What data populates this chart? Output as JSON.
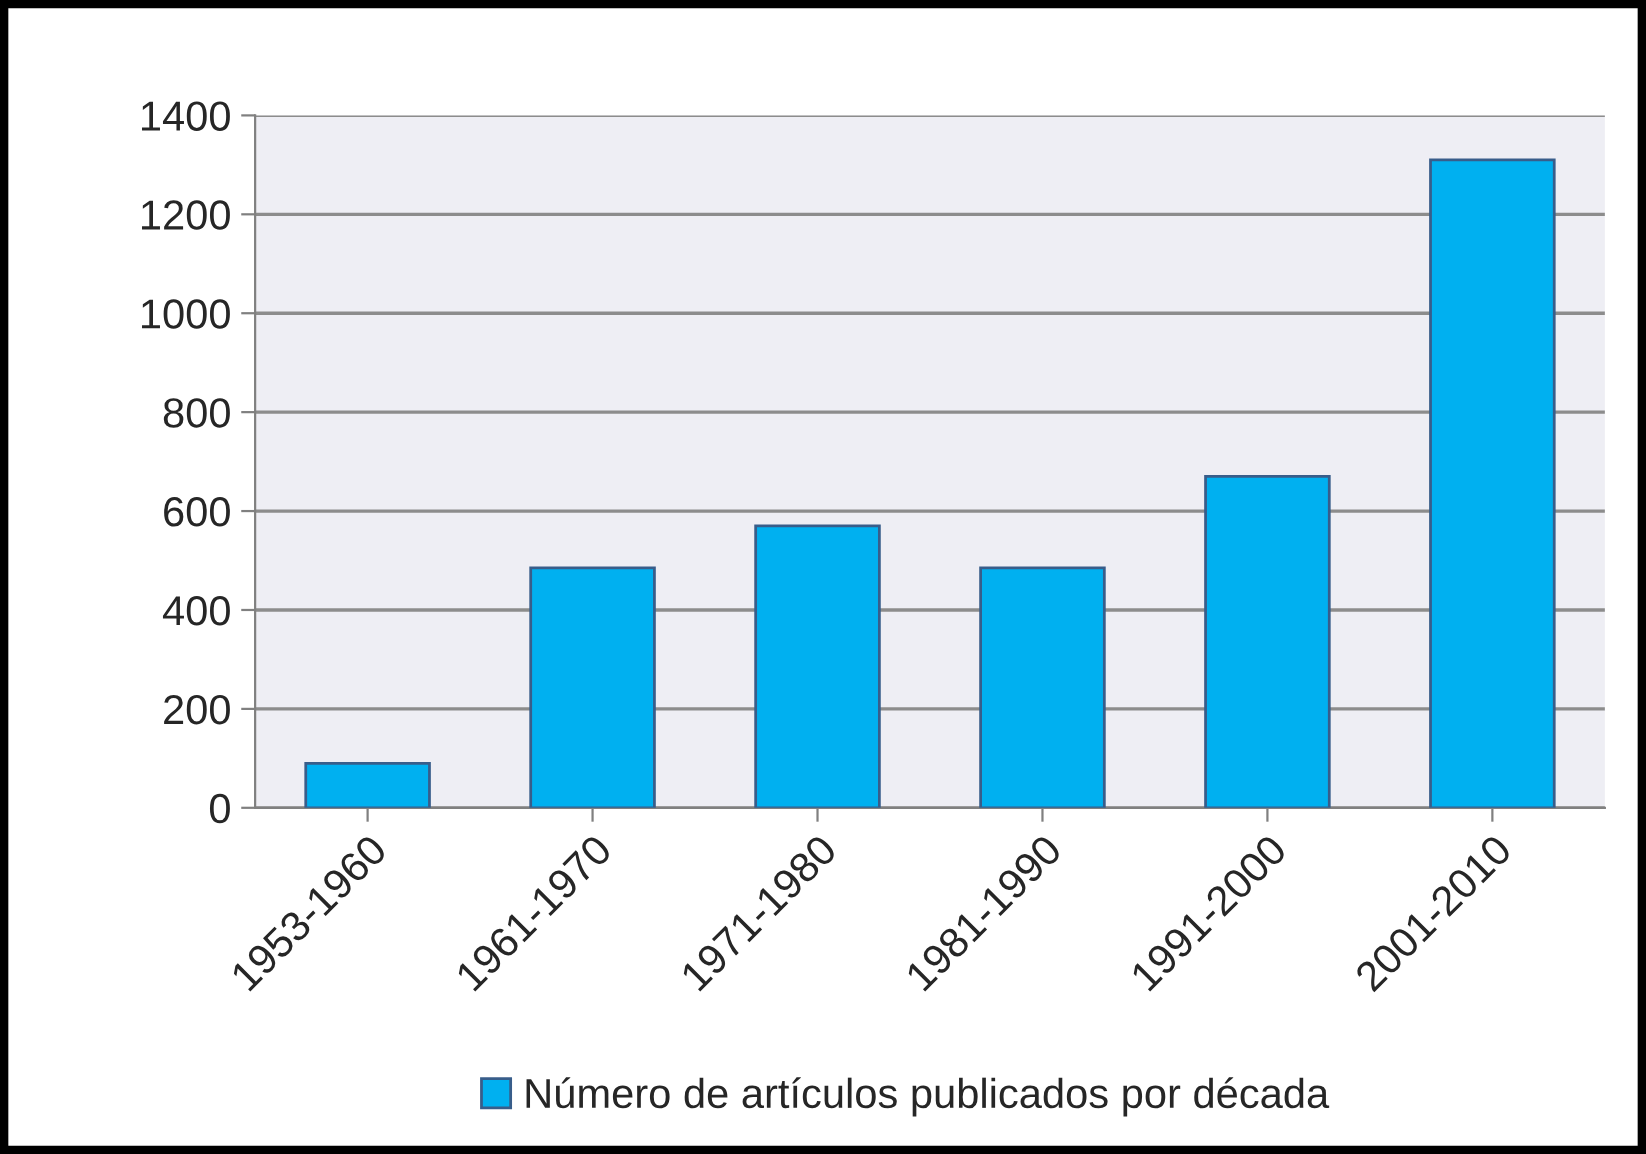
{
  "chart_data": {
    "type": "bar",
    "categories": [
      "1953-1960",
      "1961-1970",
      "1971-1980",
      "1981-1990",
      "1991-2000",
      "2001-2010"
    ],
    "series": [
      {
        "name": "Número de artículos publicados por década",
        "color": "#00b0f0",
        "values": [
          90,
          485,
          570,
          485,
          670,
          1310
        ]
      }
    ],
    "ylim": [
      0,
      1400
    ],
    "yticks": [
      0,
      200,
      400,
      600,
      800,
      1000,
      1200,
      1400
    ],
    "grid": "y",
    "legend": "bottom"
  }
}
